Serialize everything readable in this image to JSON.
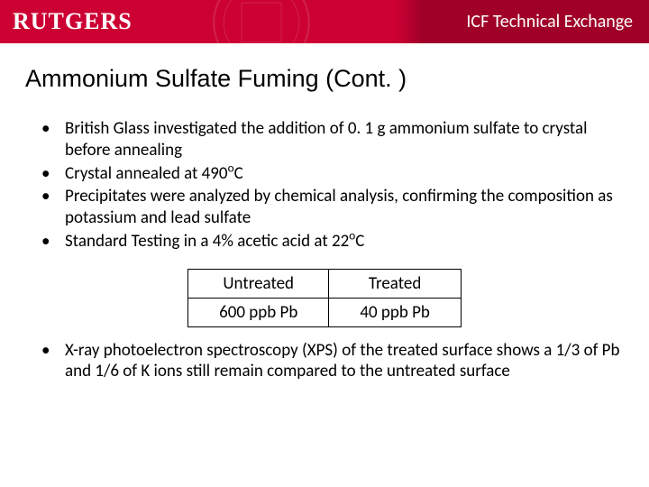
{
  "header": {
    "logo_text": "RUTGERS",
    "title": "ICF Technical Exchange",
    "band_color": "#cc0033",
    "text_color": "#ffffff"
  },
  "slide": {
    "title": "Ammonium Sulfate Fuming (Cont. )",
    "bullets_top": [
      "British Glass investigated the addition of 0. 1 g ammonium sulfate to crystal before annealing",
      "Crystal annealed at 490°C",
      "Precipitates were analyzed by chemical analysis, confirming the composition as potassium and lead sulfate",
      "Standard Testing in a 4% acetic acid at 22°C"
    ],
    "table": {
      "headers": [
        "Untreated",
        "Treated"
      ],
      "row": [
        "600 ppb Pb",
        "40 ppb Pb"
      ]
    },
    "bullets_bottom": [
      "X-ray photoelectron spectroscopy (XPS) of the treated surface shows a 1/3 of Pb and 1/6 of K ions still remain compared to the untreated surface"
    ]
  }
}
